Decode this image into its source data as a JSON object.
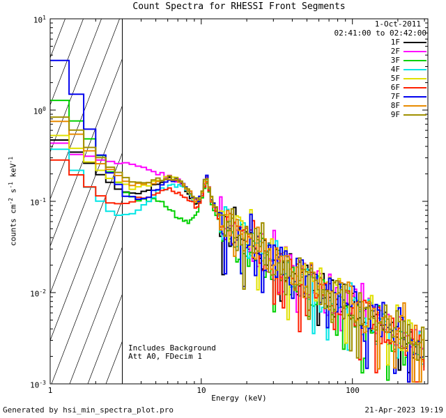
{
  "title": "Count Spectra for RHESSI Front Segments",
  "header": {
    "date": "1-Oct-2011",
    "time_range": "02:41:00 to 02:42:00"
  },
  "annotations": {
    "line1": "Includes Background",
    "line2": "Att A0, FDecim 1"
  },
  "footer": {
    "left": "Generated by hsi_min_spectra_plot.pro",
    "right": "21-Apr-2023 19:19"
  },
  "axes": {
    "xlabel": "Energy (keV)",
    "ylabel_parts": [
      {
        "t": "counts cm"
      },
      {
        "sup": "-2"
      },
      {
        "t": " s"
      },
      {
        "sup": "-1"
      },
      {
        "t": " keV"
      },
      {
        "sup": "-1"
      }
    ],
    "x_ticks": [
      {
        "label": "1",
        "value": 1
      },
      {
        "label": "10",
        "value": 10
      },
      {
        "label": "100",
        "value": 100
      }
    ],
    "y_ticks": [
      {
        "base": "10",
        "exp": "1",
        "value": 10
      },
      {
        "base": "10",
        "exp": "0",
        "value": 1
      },
      {
        "base": "10",
        "exp": "-1",
        "value": 0.1
      },
      {
        "base": "10",
        "exp": "-2",
        "value": 0.01
      },
      {
        "base": "10",
        "exp": "-3",
        "value": 0.001
      }
    ]
  },
  "chart_data": {
    "type": "line",
    "title": "Count Spectra for RHESSI Front Segments",
    "xlabel": "Energy (keV)",
    "ylabel": "counts cm^-2 s^-1 keV^-1",
    "xscale": "log",
    "yscale": "log",
    "xlim": [
      1,
      316
    ],
    "ylim": [
      0.001,
      10
    ],
    "grid": false,
    "legend_position": "top-right",
    "shaded_region": {
      "x_range": [
        1,
        3
      ],
      "style": "diagonal-hatch",
      "note": "hatched low-energy region, solid boundary at 3 keV"
    },
    "anchor_x": [
      1.0,
      1.15,
      1.3,
      1.5,
      1.7,
      2.0,
      2.3,
      2.7,
      3.2,
      3.8,
      4.5,
      5.3,
      6.2,
      7.2,
      8.3,
      9.3,
      10.0,
      10.8,
      11.8,
      13.0,
      15,
      18,
      22,
      27,
      33,
      40,
      50,
      62,
      77,
      95,
      118,
      145,
      180,
      220,
      270,
      300
    ],
    "series": [
      {
        "name": "1F",
        "color": "#000000",
        "y": [
          0.55,
          0.5,
          0.43,
          0.35,
          0.28,
          0.22,
          0.17,
          0.14,
          0.125,
          0.125,
          0.14,
          0.16,
          0.175,
          0.16,
          0.12,
          0.09,
          0.11,
          0.19,
          0.095,
          0.072,
          0.053,
          0.04,
          0.032,
          0.025,
          0.02,
          0.016,
          0.013,
          0.0105,
          0.0086,
          0.0072,
          0.006,
          0.005,
          0.004,
          0.0033,
          0.0027,
          0.0024
        ]
      },
      {
        "name": "2F",
        "color": "#ff00ff",
        "y": [
          0.45,
          0.42,
          0.38,
          0.34,
          0.31,
          0.29,
          0.27,
          0.26,
          0.25,
          0.235,
          0.215,
          0.2,
          0.185,
          0.165,
          0.13,
          0.1,
          0.115,
          0.2,
          0.1,
          0.075,
          0.056,
          0.043,
          0.034,
          0.026,
          0.021,
          0.017,
          0.0138,
          0.0112,
          0.0091,
          0.0076,
          0.0063,
          0.0053,
          0.0043,
          0.0035,
          0.0029,
          0.0025
        ]
      },
      {
        "name": "3F",
        "color": "#00d000",
        "y": [
          1.5,
          1.35,
          1.05,
          0.75,
          0.55,
          0.38,
          0.26,
          0.17,
          0.12,
          0.1,
          0.105,
          0.1,
          0.085,
          0.063,
          0.058,
          0.075,
          0.1,
          0.17,
          0.085,
          0.063,
          0.047,
          0.036,
          0.029,
          0.023,
          0.018,
          0.0145,
          0.0118,
          0.0096,
          0.0079,
          0.0066,
          0.0055,
          0.0046,
          0.0037,
          0.003,
          0.0024,
          0.0021
        ]
      },
      {
        "name": "4F",
        "color": "#00e5e5",
        "y": [
          0.42,
          0.37,
          0.3,
          0.22,
          0.16,
          0.115,
          0.09,
          0.075,
          0.07,
          0.08,
          0.1,
          0.13,
          0.15,
          0.15,
          0.12,
          0.09,
          0.105,
          0.185,
          0.092,
          0.07,
          0.052,
          0.04,
          0.031,
          0.024,
          0.0195,
          0.0158,
          0.0128,
          0.0104,
          0.0085,
          0.0071,
          0.0059,
          0.0049,
          0.0039,
          0.0032,
          0.0026,
          0.0023
        ]
      },
      {
        "name": "5F",
        "color": "#e0e000",
        "y": [
          0.6,
          0.55,
          0.47,
          0.38,
          0.31,
          0.25,
          0.2,
          0.165,
          0.145,
          0.14,
          0.15,
          0.17,
          0.185,
          0.17,
          0.13,
          0.098,
          0.112,
          0.2,
          0.1,
          0.076,
          0.056,
          0.0435,
          0.034,
          0.027,
          0.0215,
          0.0174,
          0.0141,
          0.0114,
          0.0093,
          0.0078,
          0.0064,
          0.0054,
          0.0044,
          0.0036,
          0.0029,
          0.0026
        ]
      },
      {
        "name": "6F",
        "color": "#ff2000",
        "y": [
          0.3,
          0.28,
          0.245,
          0.2,
          0.16,
          0.125,
          0.105,
          0.098,
          0.1,
          0.105,
          0.115,
          0.13,
          0.135,
          0.125,
          0.105,
          0.085,
          0.1,
          0.175,
          0.09,
          0.068,
          0.05,
          0.038,
          0.03,
          0.0235,
          0.019,
          0.0153,
          0.0124,
          0.0101,
          0.0083,
          0.0069,
          0.0057,
          0.0048,
          0.0038,
          0.0031,
          0.0025,
          0.0022
        ]
      },
      {
        "name": "7F",
        "color": "#0000ee",
        "y": [
          4.5,
          3.4,
          2.3,
          1.4,
          0.8,
          0.45,
          0.26,
          0.16,
          0.115,
          0.1,
          0.115,
          0.14,
          0.165,
          0.17,
          0.135,
          0.1,
          0.115,
          0.205,
          0.1,
          0.076,
          0.056,
          0.043,
          0.034,
          0.0265,
          0.0213,
          0.0172,
          0.0139,
          0.0113,
          0.0092,
          0.0077,
          0.0064,
          0.0053,
          0.0043,
          0.0035,
          0.0028,
          0.0025
        ]
      },
      {
        "name": "8F",
        "color": "#e88a00",
        "y": [
          0.85,
          0.78,
          0.66,
          0.52,
          0.4,
          0.3,
          0.235,
          0.19,
          0.16,
          0.15,
          0.155,
          0.17,
          0.18,
          0.165,
          0.13,
          0.098,
          0.112,
          0.195,
          0.098,
          0.074,
          0.055,
          0.042,
          0.033,
          0.026,
          0.021,
          0.0169,
          0.0137,
          0.0111,
          0.0091,
          0.0076,
          0.0063,
          0.0052,
          0.0042,
          0.0034,
          0.0028,
          0.0024
        ]
      },
      {
        "name": "9F",
        "color": "#a09000",
        "y": [
          0.95,
          0.88,
          0.74,
          0.58,
          0.44,
          0.33,
          0.26,
          0.21,
          0.175,
          0.16,
          0.165,
          0.175,
          0.185,
          0.17,
          0.135,
          0.1,
          0.115,
          0.2,
          0.1,
          0.076,
          0.057,
          0.0435,
          0.0345,
          0.027,
          0.0218,
          0.0176,
          0.0142,
          0.0115,
          0.0094,
          0.0078,
          0.0065,
          0.0054,
          0.0044,
          0.0036,
          0.0029,
          0.0025
        ]
      }
    ]
  }
}
